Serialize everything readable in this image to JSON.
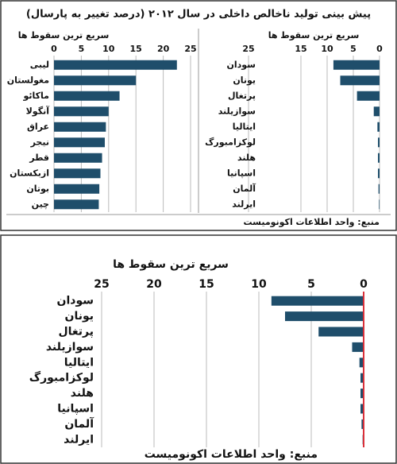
{
  "title": "پیش بینی تولید ناخالص داخلی در سال ۲۰۱۲ (درصد تغییر به پارسال)",
  "chart_data": [
    {
      "type": "barh",
      "subtitle": "سریع ترین سقوط ها",
      "color": "#1f4e6b",
      "categories": [
        "لیبی",
        "مغولستان",
        "ماکائو",
        "آنگولا",
        "عراق",
        "نیجر",
        "قطر",
        "ازبکستان",
        "بوتان",
        "چین"
      ],
      "values": [
        22.5,
        15,
        12,
        10,
        9.5,
        9.3,
        8.8,
        8.5,
        8.3,
        8.2
      ],
      "xlim": [
        0,
        25
      ],
      "xticks": [
        0,
        5,
        10,
        15,
        20,
        25
      ],
      "grid": true
    },
    {
      "type": "barh",
      "subtitle": "سریع ترین سقوط ها",
      "color": "#1f4e6b",
      "categories": [
        "سودان",
        "یونان",
        "پرتغال",
        "سوازیلند",
        "ایتالیا",
        "لوکزامبورگ",
        "هلند",
        "اسپانیا",
        "آلمان",
        "ایرلند"
      ],
      "values": [
        8.8,
        7.5,
        4.3,
        1.1,
        0.4,
        0.3,
        0.3,
        0.3,
        0.2,
        0.1
      ],
      "xlim": [
        25,
        0
      ],
      "xticks": [
        25,
        15,
        10,
        5,
        0
      ],
      "grid": true,
      "source": "منبع: واحد اطلاعات اکونومیست"
    },
    {
      "type": "barh",
      "subtitle": "سریع ترین سقوط ها",
      "color": "#1f4e6b",
      "categories": [
        "سودان",
        "یونان",
        "پرتغال",
        "سوازیلند",
        "ایتالیا",
        "لوکزامبورگ",
        "هلند",
        "اسپانیا",
        "آلمان",
        "ایرلند"
      ],
      "values": [
        8.8,
        7.5,
        4.3,
        1.1,
        0.4,
        0.3,
        0.3,
        0.3,
        0.2,
        0.1
      ],
      "xlim": [
        25,
        0
      ],
      "xticks": [
        25,
        20,
        15,
        10,
        5,
        0
      ],
      "grid": true,
      "zero_line_color": "#d9303a",
      "source": "منبع: واحد اطلاعات اکونومیست"
    }
  ]
}
